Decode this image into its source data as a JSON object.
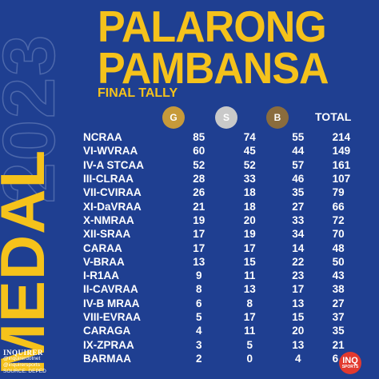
{
  "year": "2023",
  "side_title": "MEDAL",
  "title_line1": "PALARONG",
  "title_line2": "PAMBANSA",
  "subtitle": "FINAL TALLY",
  "headers": {
    "gold": "G",
    "silver": "S",
    "bronze": "B",
    "total": "TOTAL"
  },
  "colors": {
    "background": "#1f3f91",
    "accent": "#f5c21b",
    "gold": "#c79a3a",
    "silver": "#c9c9c9",
    "bronze": "#8a6c3d"
  },
  "rows": [
    {
      "team": "NCRAA",
      "g": "85",
      "s": "74",
      "b": "55",
      "t": "214"
    },
    {
      "team": "VI-WVRAA",
      "g": "60",
      "s": "45",
      "b": "44",
      "t": "149"
    },
    {
      "team": "IV-A STCAA",
      "g": "52",
      "s": "52",
      "b": "57",
      "t": "161"
    },
    {
      "team": "III-CLRAA",
      "g": "28",
      "s": "33",
      "b": "46",
      "t": "107"
    },
    {
      "team": "VII-CVIRAA",
      "g": "26",
      "s": "18",
      "b": "35",
      "t": "79"
    },
    {
      "team": "XI-DaVRAA",
      "g": "21",
      "s": "18",
      "b": "27",
      "t": "66"
    },
    {
      "team": "X-NMRAA",
      "g": "19",
      "s": "20",
      "b": "33",
      "t": "72"
    },
    {
      "team": "XII-SRAA",
      "g": "17",
      "s": "19",
      "b": "34",
      "t": "70"
    },
    {
      "team": "CARAA",
      "g": "17",
      "s": "17",
      "b": "14",
      "t": "48"
    },
    {
      "team": "V-BRAA",
      "g": "13",
      "s": "15",
      "b": "22",
      "t": "50"
    },
    {
      "team": "I-R1AA",
      "g": "9",
      "s": "11",
      "b": "23",
      "t": "43"
    },
    {
      "team": "II-CAVRAA",
      "g": "8",
      "s": "13",
      "b": "17",
      "t": "38"
    },
    {
      "team": "IV-B MRAA",
      "g": "6",
      "s": "8",
      "b": "13",
      "t": "27"
    },
    {
      "team": "VIII-EVRAA",
      "g": "5",
      "s": "17",
      "b": "15",
      "t": "37"
    },
    {
      "team": "CARAGA",
      "g": "4",
      "s": "11",
      "b": "20",
      "t": "35"
    },
    {
      "team": "IX-ZPRAA",
      "g": "3",
      "s": "5",
      "b": "13",
      "t": "21"
    },
    {
      "team": "BARMAA",
      "g": "2",
      "s": "0",
      "b": "4",
      "t": "6"
    }
  ],
  "footer": {
    "brand": "INQUIRER",
    "handle1": "@inquirerdotnet",
    "handle2": "@inquirersports",
    "source": "SOURCE: DEPED",
    "logo_top": "INQ",
    "logo_bottom": "SPORTS"
  }
}
